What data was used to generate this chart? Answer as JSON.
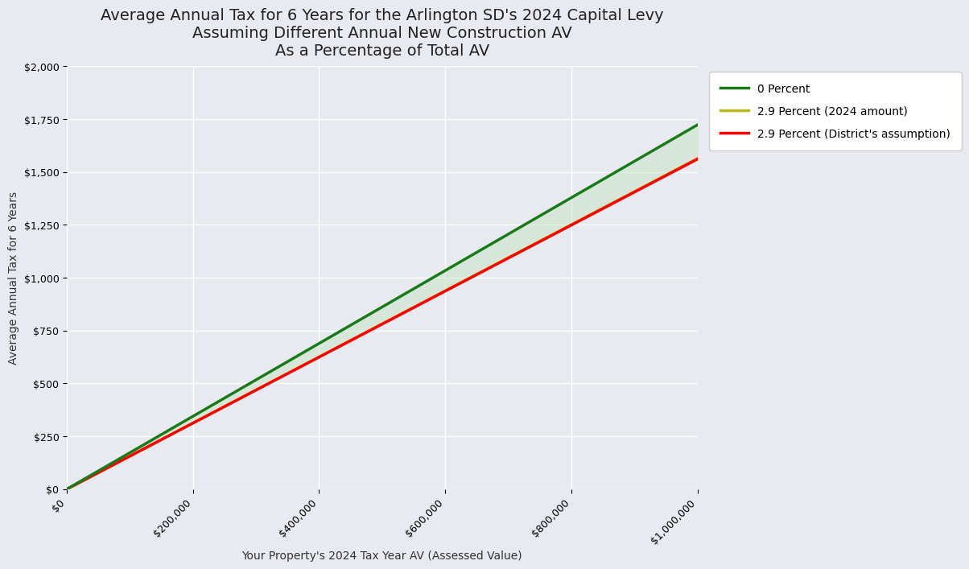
{
  "title_line1": "Average Annual Tax for 6 Years for the Arlington SD's 2024 Capital Levy",
  "title_line2": "Assuming Different Annual New Construction AV",
  "title_line3": "As a Percentage of Total AV",
  "xlabel": "Your Property's 2024 Tax Year AV (Assessed Value)",
  "ylabel": "Average Annual Tax for 6 Years",
  "x_start": 0,
  "x_end": 1000000,
  "ylim": [
    0,
    2000
  ],
  "xlim": [
    0,
    1000000
  ],
  "background_color": "#e8eaf0",
  "plot_bg_color": "#e8eaf0",
  "green_label": "0 Percent",
  "yellow_label": "2.9 Percent (2024 amount)",
  "red_label": "2.9 Percent (District's assumption)",
  "green_color": "#1a7a1a",
  "yellow_color": "#b8b820",
  "red_color": "#ff0000",
  "fill_color": "#c8e6c8",
  "fill_alpha": 0.55,
  "green_start_y": 0,
  "green_end_y": 1722,
  "red_start_y": 0,
  "red_end_y": 1560,
  "title_fontsize": 14,
  "axis_label_fontsize": 10,
  "tick_fontsize": 9,
  "legend_fontsize": 10,
  "line_width": 2.5
}
